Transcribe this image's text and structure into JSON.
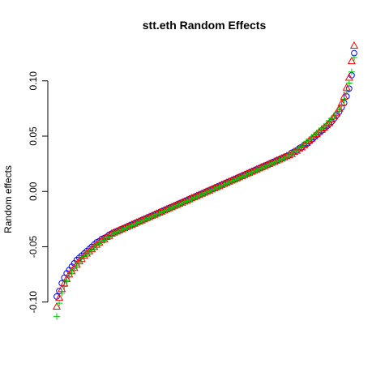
{
  "chart_data": {
    "type": "scatter",
    "title": "stt.eth Random Effects",
    "xlabel": "",
    "ylabel": "Random effects",
    "ylim": [
      -0.12,
      0.135
    ],
    "yticks": [
      -0.1,
      -0.05,
      0.0,
      0.05,
      0.1
    ],
    "ytick_labels": [
      "-0.10",
      "-0.05",
      "0.00",
      "0.05",
      "0.10"
    ],
    "grid": false,
    "legend": "none",
    "n_points": 120,
    "x": "rank",
    "series": [
      {
        "marker": "circle",
        "color": "#0000FF",
        "values": [
          -0.095,
          -0.09,
          -0.083,
          -0.078,
          -0.074,
          -0.071,
          -0.068,
          -0.065,
          -0.062,
          -0.06,
          -0.058,
          -0.056,
          -0.054,
          -0.052,
          -0.05,
          -0.048,
          -0.046,
          -0.045,
          -0.043,
          -0.042,
          -0.041,
          -0.039,
          -0.038,
          -0.037,
          -0.036,
          -0.035,
          -0.034,
          -0.033,
          -0.032,
          -0.031,
          -0.03,
          -0.029,
          -0.028,
          -0.027,
          -0.026,
          -0.025,
          -0.024,
          -0.023,
          -0.022,
          -0.021,
          -0.02,
          -0.019,
          -0.018,
          -0.017,
          -0.016,
          -0.015,
          -0.014,
          -0.013,
          -0.012,
          -0.011,
          -0.01,
          -0.009,
          -0.008,
          -0.007,
          -0.006,
          -0.005,
          -0.004,
          -0.003,
          -0.002,
          -0.001,
          0.0,
          0.001,
          0.002,
          0.003,
          0.004,
          0.005,
          0.006,
          0.007,
          0.008,
          0.009,
          0.01,
          0.011,
          0.012,
          0.013,
          0.014,
          0.015,
          0.016,
          0.017,
          0.018,
          0.019,
          0.02,
          0.021,
          0.022,
          0.023,
          0.024,
          0.025,
          0.026,
          0.027,
          0.028,
          0.029,
          0.03,
          0.031,
          0.032,
          0.033,
          0.035,
          0.036,
          0.037,
          0.039,
          0.04,
          0.042,
          0.043,
          0.045,
          0.047,
          0.049,
          0.051,
          0.053,
          0.055,
          0.057,
          0.059,
          0.061,
          0.063,
          0.066,
          0.069,
          0.072,
          0.076,
          0.08,
          0.086,
          0.093,
          0.105,
          0.125
        ]
      },
      {
        "marker": "triangle",
        "color": "#FF0000",
        "values": [
          -0.104,
          -0.096,
          -0.088,
          -0.083,
          -0.079,
          -0.075,
          -0.072,
          -0.069,
          -0.066,
          -0.063,
          -0.061,
          -0.058,
          -0.056,
          -0.054,
          -0.052,
          -0.05,
          -0.048,
          -0.046,
          -0.044,
          -0.043,
          -0.041,
          -0.04,
          -0.038,
          -0.037,
          -0.036,
          -0.035,
          -0.034,
          -0.033,
          -0.032,
          -0.031,
          -0.03,
          -0.029,
          -0.028,
          -0.027,
          -0.026,
          -0.025,
          -0.024,
          -0.023,
          -0.022,
          -0.021,
          -0.02,
          -0.019,
          -0.018,
          -0.017,
          -0.016,
          -0.015,
          -0.014,
          -0.013,
          -0.012,
          -0.011,
          -0.01,
          -0.009,
          -0.008,
          -0.007,
          -0.006,
          -0.005,
          -0.004,
          -0.003,
          -0.002,
          -0.001,
          0.0,
          0.001,
          0.002,
          0.003,
          0.004,
          0.005,
          0.006,
          0.007,
          0.008,
          0.009,
          0.01,
          0.011,
          0.012,
          0.013,
          0.014,
          0.015,
          0.016,
          0.017,
          0.018,
          0.019,
          0.02,
          0.021,
          0.022,
          0.023,
          0.024,
          0.025,
          0.026,
          0.027,
          0.028,
          0.029,
          0.03,
          0.031,
          0.032,
          0.033,
          0.034,
          0.036,
          0.037,
          0.039,
          0.04,
          0.042,
          0.044,
          0.046,
          0.048,
          0.05,
          0.052,
          0.054,
          0.056,
          0.058,
          0.06,
          0.062,
          0.065,
          0.068,
          0.071,
          0.075,
          0.08,
          0.086,
          0.094,
          0.103,
          0.118,
          0.132
        ]
      },
      {
        "marker": "plus",
        "color": "#00CC00",
        "values": [
          -0.113,
          -0.101,
          -0.092,
          -0.086,
          -0.081,
          -0.077,
          -0.073,
          -0.07,
          -0.067,
          -0.064,
          -0.061,
          -0.059,
          -0.057,
          -0.055,
          -0.053,
          -0.051,
          -0.049,
          -0.047,
          -0.045,
          -0.044,
          -0.042,
          -0.041,
          -0.039,
          -0.038,
          -0.037,
          -0.036,
          -0.035,
          -0.034,
          -0.033,
          -0.032,
          -0.031,
          -0.03,
          -0.029,
          -0.028,
          -0.027,
          -0.026,
          -0.025,
          -0.024,
          -0.023,
          -0.022,
          -0.021,
          -0.02,
          -0.019,
          -0.018,
          -0.017,
          -0.016,
          -0.015,
          -0.014,
          -0.013,
          -0.012,
          -0.011,
          -0.01,
          -0.009,
          -0.008,
          -0.007,
          -0.006,
          -0.005,
          -0.004,
          -0.003,
          -0.002,
          -0.001,
          0.0,
          0.001,
          0.002,
          0.003,
          0.004,
          0.005,
          0.006,
          0.007,
          0.008,
          0.009,
          0.01,
          0.011,
          0.012,
          0.013,
          0.014,
          0.015,
          0.016,
          0.017,
          0.018,
          0.019,
          0.02,
          0.021,
          0.022,
          0.023,
          0.024,
          0.025,
          0.026,
          0.027,
          0.028,
          0.029,
          0.03,
          0.031,
          0.033,
          0.034,
          0.036,
          0.037,
          0.039,
          0.041,
          0.043,
          0.045,
          0.047,
          0.049,
          0.051,
          0.053,
          0.055,
          0.057,
          0.059,
          0.061,
          0.064,
          0.066,
          0.068,
          0.071,
          0.074,
          0.078,
          0.083,
          0.09,
          0.098,
          0.108,
          0.121
        ]
      }
    ]
  }
}
